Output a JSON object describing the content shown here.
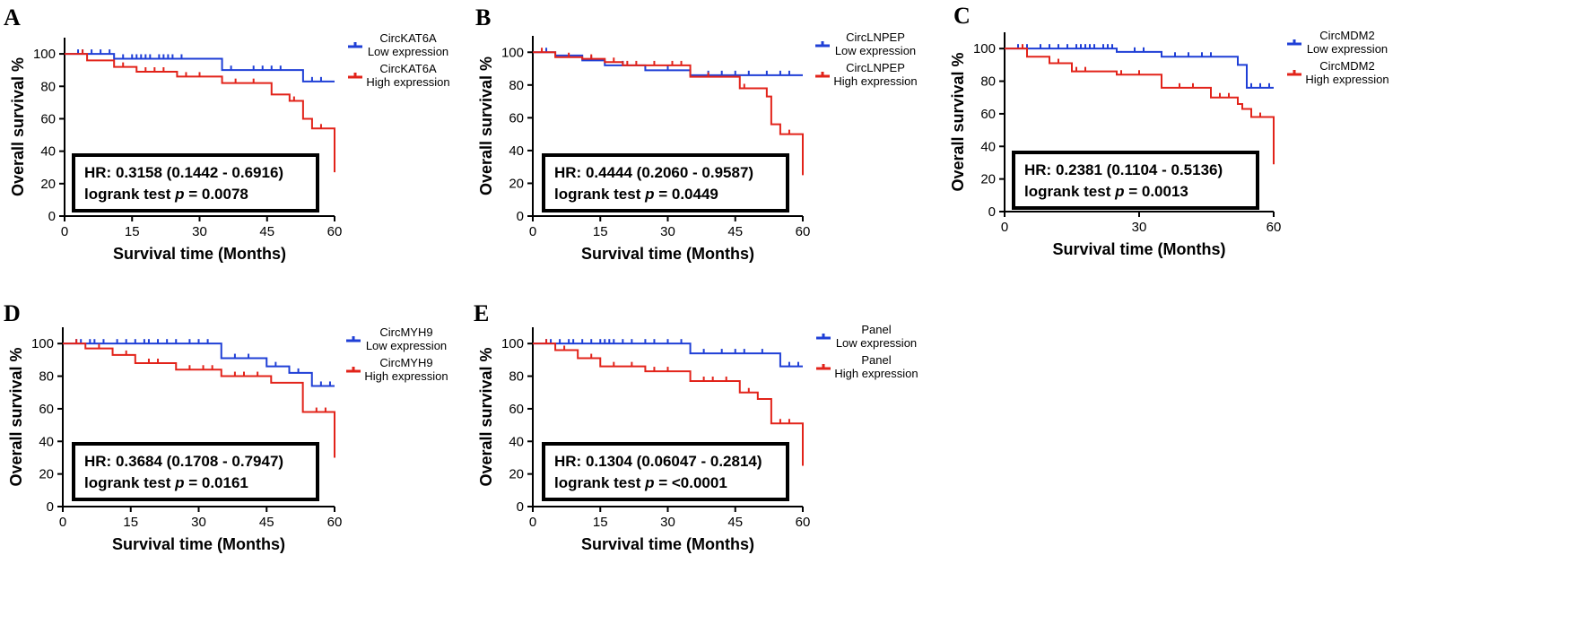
{
  "chart_data": [
    {
      "type": "line",
      "panel_label": "A",
      "xlabel": "Survival time (Months)",
      "ylabel": "Overall survival %",
      "xlim": [
        0,
        60
      ],
      "ylim": [
        0,
        110
      ],
      "xticks": [
        "0",
        "15",
        "30",
        "45",
        "60"
      ],
      "yticks": [
        "0",
        "20",
        "40",
        "60",
        "80",
        "100"
      ],
      "legend_position": "right",
      "hr_text": "HR:  0.3158 (0.1442 - 0.6916)",
      "logrank_text": "logrank test p = 0.0078",
      "series": [
        {
          "label_line1": "CircKAT6A",
          "label_line2": "Low expression",
          "color": "#1f3fd6",
          "x": [
            0,
            11,
            35,
            53,
            60
          ],
          "y": [
            100,
            97,
            90,
            83,
            83
          ],
          "censored_x": [
            3,
            4,
            6,
            8,
            10,
            13,
            15,
            16,
            17,
            18,
            19,
            21,
            22,
            23,
            24,
            26,
            37,
            42,
            44,
            46,
            48,
            55,
            57
          ]
        },
        {
          "label_line1": "CircKAT6A",
          "label_line2": "High expression",
          "color": "#e2231a",
          "x": [
            0,
            5,
            11,
            16,
            25,
            35,
            46,
            50,
            53,
            55,
            60,
            60
          ],
          "y": [
            100,
            96,
            92,
            89,
            86,
            82,
            75,
            71,
            60,
            54,
            54,
            27
          ],
          "censored_x": [
            4,
            13,
            18,
            20,
            22,
            27,
            30,
            38,
            42,
            51,
            57
          ]
        }
      ]
    },
    {
      "type": "line",
      "panel_label": "B",
      "xlabel": "Survival time (Months)",
      "ylabel": "Overall survival %",
      "xlim": [
        0,
        60
      ],
      "ylim": [
        0,
        110
      ],
      "xticks": [
        "0",
        "15",
        "30",
        "45",
        "60"
      ],
      "yticks": [
        "0",
        "20",
        "40",
        "60",
        "80",
        "100"
      ],
      "legend_position": "right",
      "hr_text": "HR:  0.4444 (0.2060 - 0.9587)",
      "logrank_text": "logrank test p = 0.0449",
      "series": [
        {
          "label_line1": "CircLNPEP",
          "label_line2": "Low expression",
          "color": "#1f3fd6",
          "x": [
            0,
            5,
            11,
            16,
            25,
            35,
            60
          ],
          "y": [
            100,
            98,
            95,
            92,
            89,
            86,
            86
          ],
          "censored_x": [
            3,
            13,
            20,
            30,
            39,
            42,
            45,
            48,
            52,
            55,
            57
          ]
        },
        {
          "label_line1": "CircLNPEP",
          "label_line2": "High expression",
          "color": "#e2231a",
          "x": [
            0,
            5,
            11,
            16,
            20,
            35,
            46,
            52,
            53,
            55,
            60,
            60
          ],
          "y": [
            100,
            97,
            96,
            94,
            92,
            85,
            78,
            73,
            56,
            50,
            50,
            25
          ],
          "censored_x": [
            2,
            8,
            13,
            18,
            21,
            23,
            27,
            31,
            33,
            39,
            47,
            57
          ]
        }
      ]
    },
    {
      "type": "line",
      "panel_label": "C",
      "xlabel": "Survival time (Months)",
      "ylabel": "Overall survival %",
      "xlim": [
        0,
        60
      ],
      "ylim": [
        0,
        110
      ],
      "xticks": [
        "0",
        "30",
        "60"
      ],
      "yticks": [
        "0",
        "20",
        "40",
        "60",
        "80",
        "100"
      ],
      "legend_position": "right",
      "hr_text": "HR:  0.2381 (0.1104 - 0.5136)",
      "logrank_text": "logrank test p = 0.0013",
      "series": [
        {
          "label_line1": "CircMDM2",
          "label_line2": "Low expression",
          "color": "#1f3fd6",
          "x": [
            0,
            25,
            35,
            52,
            54,
            60
          ],
          "y": [
            100,
            98,
            95,
            90,
            76,
            76
          ],
          "censored_x": [
            3,
            5,
            8,
            10,
            12,
            14,
            16,
            17,
            18,
            19,
            20,
            22,
            23,
            24,
            29,
            31,
            38,
            41,
            44,
            46,
            55,
            57,
            59
          ]
        },
        {
          "label_line1": "CircMDM2",
          "label_line2": "High expression",
          "color": "#e2231a",
          "x": [
            0,
            5,
            10,
            15,
            25,
            35,
            46,
            52,
            53,
            55,
            60,
            60
          ],
          "y": [
            100,
            95,
            91,
            86,
            84,
            76,
            70,
            66,
            63,
            58,
            58,
            29
          ],
          "censored_x": [
            4,
            12,
            16,
            18,
            26,
            30,
            39,
            42,
            48,
            50,
            57
          ]
        }
      ]
    },
    {
      "type": "line",
      "panel_label": "D",
      "xlabel": "Survival time (Months)",
      "ylabel": "Overall survival %",
      "xlim": [
        0,
        60
      ],
      "ylim": [
        0,
        110
      ],
      "xticks": [
        "0",
        "15",
        "30",
        "45",
        "60"
      ],
      "yticks": [
        "0",
        "20",
        "40",
        "60",
        "80",
        "100"
      ],
      "legend_position": "right",
      "hr_text": "HR:  0.3684 (0.1708 - 0.7947)",
      "logrank_text": "logrank test p = 0.0161",
      "series": [
        {
          "label_line1": "CircMYH9",
          "label_line2": "Low expression",
          "color": "#1f3fd6",
          "x": [
            0,
            35,
            45,
            50,
            55,
            60
          ],
          "y": [
            100,
            91,
            86,
            82,
            74,
            74
          ],
          "censored_x": [
            3,
            4,
            6,
            7,
            9,
            12,
            14,
            16,
            18,
            19,
            21,
            23,
            25,
            28,
            30,
            32,
            38,
            41,
            47,
            52,
            57,
            59
          ]
        },
        {
          "label_line1": "CircMYH9",
          "label_line2": "High expression",
          "color": "#e2231a",
          "x": [
            0,
            5,
            11,
            16,
            25,
            35,
            46,
            53,
            60,
            60
          ],
          "y": [
            100,
            97,
            93,
            88,
            84,
            80,
            76,
            58,
            58,
            30
          ],
          "censored_x": [
            3,
            8,
            14,
            19,
            21,
            28,
            31,
            33,
            38,
            40,
            43,
            56,
            58
          ]
        }
      ]
    },
    {
      "type": "line",
      "panel_label": "E",
      "xlabel": "Survival time (Months)",
      "ylabel": "Overall survival %",
      "xlim": [
        0,
        60
      ],
      "ylim": [
        0,
        110
      ],
      "xticks": [
        "0",
        "15",
        "30",
        "45",
        "60"
      ],
      "yticks": [
        "0",
        "20",
        "40",
        "60",
        "80",
        "100"
      ],
      "legend_position": "right",
      "hr_text": "HR:  0.1304 (0.06047 - 0.2814)",
      "logrank_text": "logrank test p = <0.0001",
      "series": [
        {
          "label_line1": "Panel",
          "label_line2": "Low expression",
          "color": "#1f3fd6",
          "x": [
            0,
            35,
            55,
            60
          ],
          "y": [
            100,
            94,
            86,
            86
          ],
          "censored_x": [
            3,
            4,
            6,
            8,
            9,
            11,
            13,
            15,
            16,
            17,
            18,
            20,
            22,
            25,
            27,
            30,
            33,
            38,
            42,
            45,
            47,
            51,
            57,
            59
          ]
        },
        {
          "label_line1": "Panel",
          "label_line2": "High expression",
          "color": "#e2231a",
          "x": [
            0,
            5,
            10,
            15,
            25,
            35,
            46,
            50,
            53,
            60,
            60
          ],
          "y": [
            100,
            96,
            91,
            86,
            83,
            77,
            70,
            66,
            51,
            51,
            25
          ],
          "censored_x": [
            3,
            7,
            13,
            18,
            22,
            27,
            30,
            38,
            40,
            43,
            48,
            55,
            57
          ]
        }
      ]
    }
  ]
}
